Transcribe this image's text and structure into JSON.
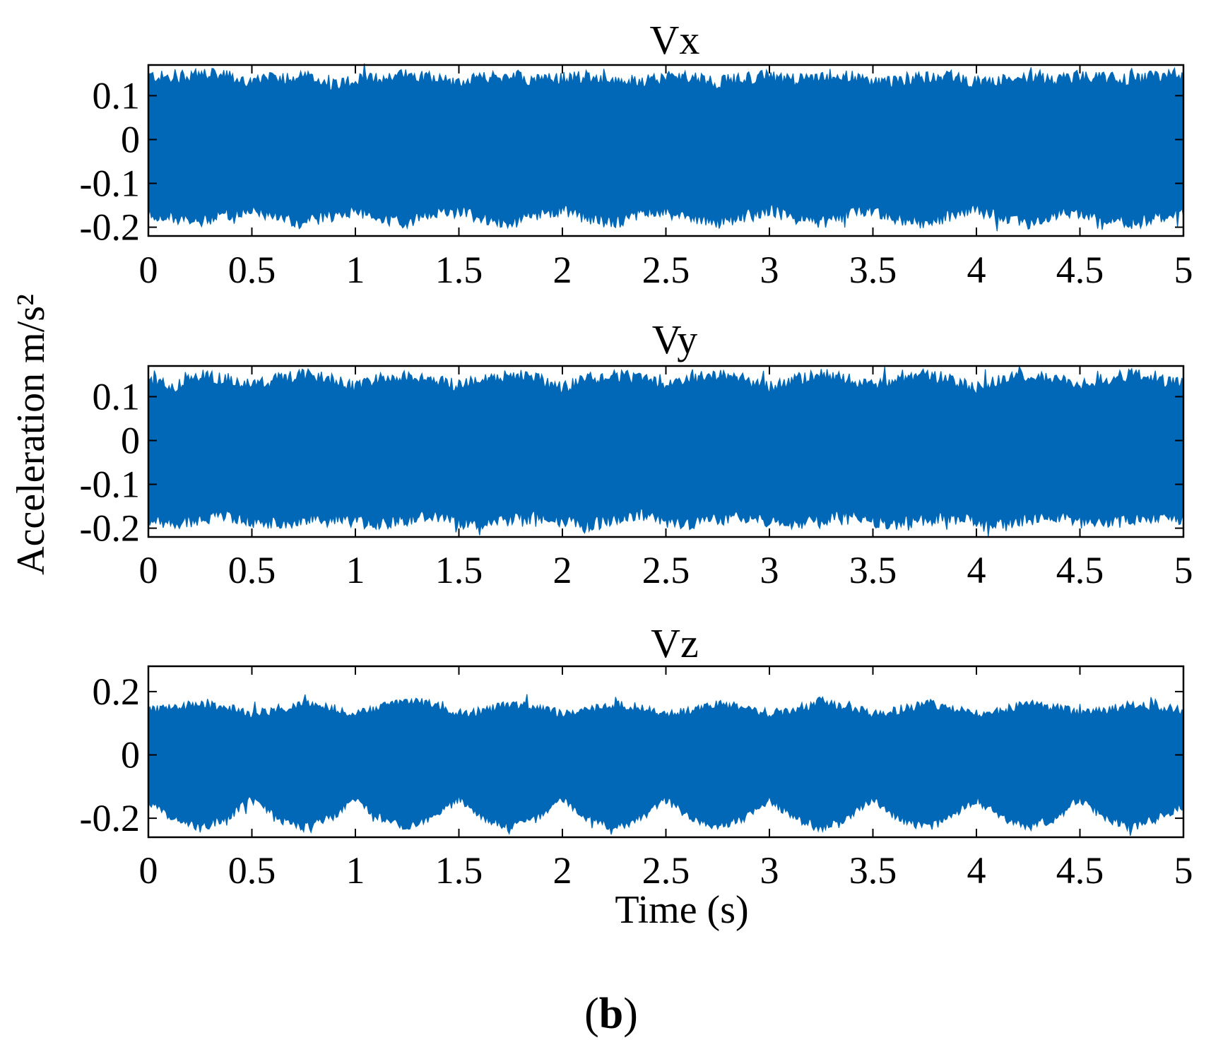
{
  "figure": {
    "ylabel": "Acceleration m/s²",
    "xlabel": "Time (s)",
    "caption": {
      "open": "(",
      "letter": "b",
      "close": ")"
    },
    "signal_color": "#0068B7"
  },
  "chart_data": [
    {
      "type": "line",
      "title": "Vx",
      "xlim": [
        0,
        5
      ],
      "ylim": [
        -0.22,
        0.17
      ],
      "x_ticks": [
        "0",
        "0.5",
        "1",
        "1.5",
        "2",
        "2.5",
        "3",
        "3.5",
        "4",
        "4.5",
        "5"
      ],
      "x_tick_values": [
        0,
        0.5,
        1,
        1.5,
        2,
        2.5,
        3,
        3.5,
        4,
        4.5,
        5
      ],
      "y_ticks": [
        "0.1",
        "0",
        "-0.1",
        "-0.2"
      ],
      "y_tick_values": [
        0.1,
        0,
        -0.1,
        -0.2
      ],
      "upper_envelope": [
        0.145,
        0.14,
        0.15,
        0.145,
        0.13,
        0.14,
        0.145,
        0.125,
        0.135,
        0.14,
        0.15,
        0.14,
        0.13,
        0.14,
        0.145,
        0.135,
        0.14,
        0.145,
        0.13,
        0.135,
        0.14,
        0.145,
        0.13,
        0.14,
        0.145,
        0.135,
        0.14,
        0.145,
        0.13,
        0.135,
        0.14,
        0.145,
        0.13,
        0.135,
        0.14,
        0.135,
        0.145,
        0.14,
        0.135,
        0.145,
        0.15
      ],
      "lower_envelope": [
        -0.17,
        -0.18,
        -0.19,
        -0.17,
        -0.165,
        -0.18,
        -0.19,
        -0.175,
        -0.16,
        -0.18,
        -0.19,
        -0.17,
        -0.165,
        -0.18,
        -0.19,
        -0.17,
        -0.16,
        -0.18,
        -0.19,
        -0.17,
        -0.165,
        -0.18,
        -0.19,
        -0.175,
        -0.16,
        -0.18,
        -0.19,
        -0.17,
        -0.165,
        -0.18,
        -0.19,
        -0.175,
        -0.16,
        -0.18,
        -0.19,
        -0.17,
        -0.165,
        -0.18,
        -0.19,
        -0.175,
        -0.17
      ]
    },
    {
      "type": "line",
      "title": "Vy",
      "xlim": [
        0,
        5
      ],
      "ylim": [
        -0.22,
        0.17
      ],
      "x_ticks": [
        "0",
        "0.5",
        "1",
        "1.5",
        "2",
        "2.5",
        "3",
        "3.5",
        "4",
        "4.5",
        "5"
      ],
      "x_tick_values": [
        0,
        0.5,
        1,
        1.5,
        2,
        2.5,
        3,
        3.5,
        4,
        4.5,
        5
      ],
      "y_ticks": [
        "0.1",
        "0",
        "-0.1",
        "-0.2"
      ],
      "y_tick_values": [
        0.1,
        0,
        -0.1,
        -0.2
      ],
      "upper_envelope": [
        0.14,
        0.12,
        0.15,
        0.14,
        0.125,
        0.14,
        0.15,
        0.14,
        0.12,
        0.14,
        0.15,
        0.14,
        0.125,
        0.14,
        0.15,
        0.14,
        0.12,
        0.14,
        0.15,
        0.14,
        0.125,
        0.14,
        0.15,
        0.14,
        0.12,
        0.14,
        0.15,
        0.14,
        0.125,
        0.14,
        0.15,
        0.14,
        0.12,
        0.14,
        0.15,
        0.14,
        0.125,
        0.14,
        0.15,
        0.14,
        0.13
      ],
      "lower_envelope": [
        -0.185,
        -0.19,
        -0.18,
        -0.17,
        -0.185,
        -0.19,
        -0.18,
        -0.175,
        -0.185,
        -0.19,
        -0.18,
        -0.17,
        -0.185,
        -0.19,
        -0.18,
        -0.175,
        -0.185,
        -0.19,
        -0.18,
        -0.17,
        -0.185,
        -0.19,
        -0.18,
        -0.175,
        -0.185,
        -0.19,
        -0.18,
        -0.17,
        -0.185,
        -0.19,
        -0.18,
        -0.175,
        -0.185,
        -0.19,
        -0.18,
        -0.17,
        -0.185,
        -0.19,
        -0.18,
        -0.175,
        -0.18
      ]
    },
    {
      "type": "line",
      "title": "Vz",
      "xlim": [
        0,
        5
      ],
      "ylim": [
        -0.26,
        0.28
      ],
      "x_ticks": [
        "0",
        "0.5",
        "1",
        "1.5",
        "2",
        "2.5",
        "3",
        "3.5",
        "4",
        "4.5",
        "5"
      ],
      "x_tick_values": [
        0,
        0.5,
        1,
        1.5,
        2,
        2.5,
        3,
        3.5,
        4,
        4.5,
        5
      ],
      "y_ticks": [
        "0.2",
        "0",
        "-0.2"
      ],
      "y_tick_values": [
        0.2,
        0,
        -0.2
      ],
      "upper_envelope": [
        0.14,
        0.15,
        0.16,
        0.15,
        0.13,
        0.14,
        0.16,
        0.15,
        0.13,
        0.15,
        0.17,
        0.16,
        0.13,
        0.14,
        0.16,
        0.15,
        0.13,
        0.14,
        0.16,
        0.15,
        0.13,
        0.14,
        0.16,
        0.15,
        0.13,
        0.14,
        0.17,
        0.15,
        0.13,
        0.14,
        0.16,
        0.15,
        0.13,
        0.14,
        0.16,
        0.15,
        0.13,
        0.14,
        0.16,
        0.15,
        0.14
      ],
      "lower_envelope": [
        -0.15,
        -0.2,
        -0.23,
        -0.2,
        -0.14,
        -0.2,
        -0.23,
        -0.2,
        -0.14,
        -0.2,
        -0.23,
        -0.2,
        -0.14,
        -0.2,
        -0.23,
        -0.2,
        -0.14,
        -0.2,
        -0.23,
        -0.2,
        -0.14,
        -0.2,
        -0.23,
        -0.2,
        -0.14,
        -0.2,
        -0.23,
        -0.2,
        -0.14,
        -0.2,
        -0.23,
        -0.2,
        -0.14,
        -0.2,
        -0.23,
        -0.2,
        -0.14,
        -0.2,
        -0.23,
        -0.2,
        -0.16
      ]
    }
  ]
}
